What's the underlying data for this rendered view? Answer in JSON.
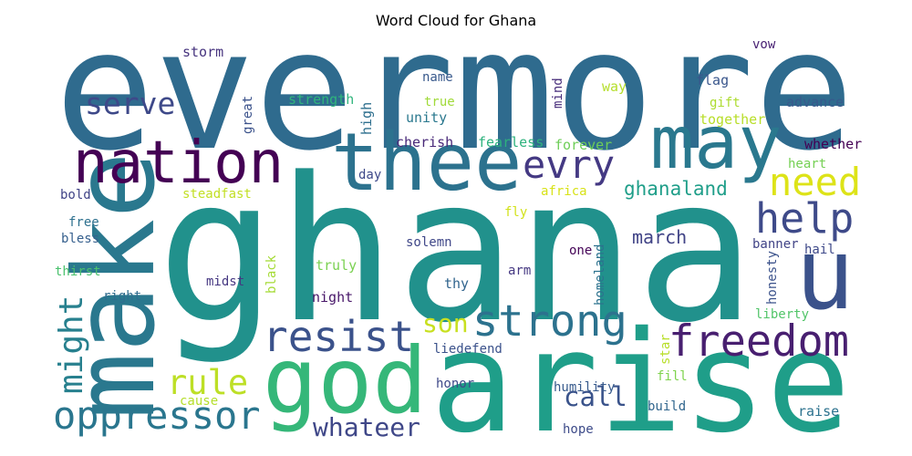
{
  "chart_data": {
    "type": "wordcloud",
    "title": "Word Cloud for Ghana",
    "words": [
      "evermore",
      "ghana",
      "arise",
      "god",
      "make",
      "nation",
      "thee",
      "may",
      "u",
      "need",
      "help",
      "evry",
      "serve",
      "ghanaland",
      "resist",
      "strong",
      "son",
      "freedom",
      "might",
      "rule",
      "oppressor",
      "call",
      "whateer",
      "march",
      "storm",
      "name",
      "true",
      "unity",
      "strength",
      "high",
      "mind",
      "way",
      "vow",
      "flag",
      "gift",
      "advance",
      "together",
      "great",
      "cherish",
      "fearless",
      "forever",
      "whether",
      "heart",
      "day",
      "bold",
      "steadfast",
      "africa",
      "free",
      "bless",
      "solemn",
      "fly",
      "one",
      "banner",
      "hail",
      "thirst",
      "black",
      "truly",
      "arm",
      "homeland",
      "honesty",
      "right",
      "midst",
      "thy",
      "night",
      "liberty",
      "liedefend",
      "star",
      "fill",
      "honor",
      "cause",
      "humility",
      "build",
      "raise",
      "hope"
    ]
  }
}
